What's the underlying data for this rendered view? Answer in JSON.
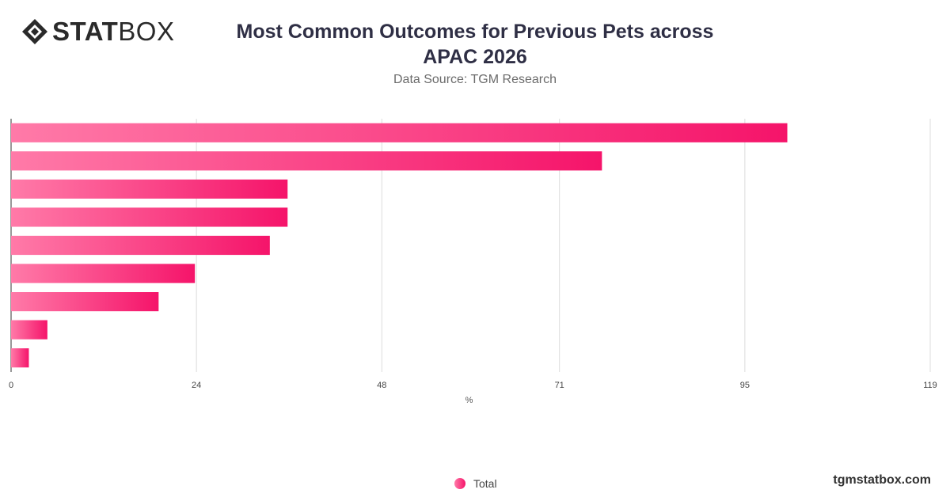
{
  "brand": {
    "logo_bold": "STAT",
    "logo_light": "BOX",
    "icon": "diamond-logo-icon"
  },
  "title_line1": "Most Common Outcomes for Previous Pets across",
  "title_line2": "APAC 2026",
  "subtitle": "Data Source: TGM Research",
  "footer": {
    "site": "tgmstatbox.com"
  },
  "colors": {
    "bar_start": "#ff7aa8",
    "bar_end": "#f5146a",
    "grid": "#dcdcdc"
  },
  "chart_data": {
    "type": "bar",
    "orientation": "horizontal",
    "categories": [
      "",
      "",
      "",
      "",
      "",
      "",
      "",
      "",
      ""
    ],
    "series": [
      {
        "name": "Total",
        "values": [
          100.5,
          76.5,
          35.8,
          35.8,
          33.5,
          23.8,
          19.1,
          4.7,
          2.3
        ]
      }
    ],
    "xlabel": "%",
    "ylabel": "",
    "xticks": [
      0,
      24,
      48,
      71,
      95,
      119
    ],
    "xlim": [
      0,
      119
    ],
    "grid": true,
    "legend": "bottom-center"
  }
}
